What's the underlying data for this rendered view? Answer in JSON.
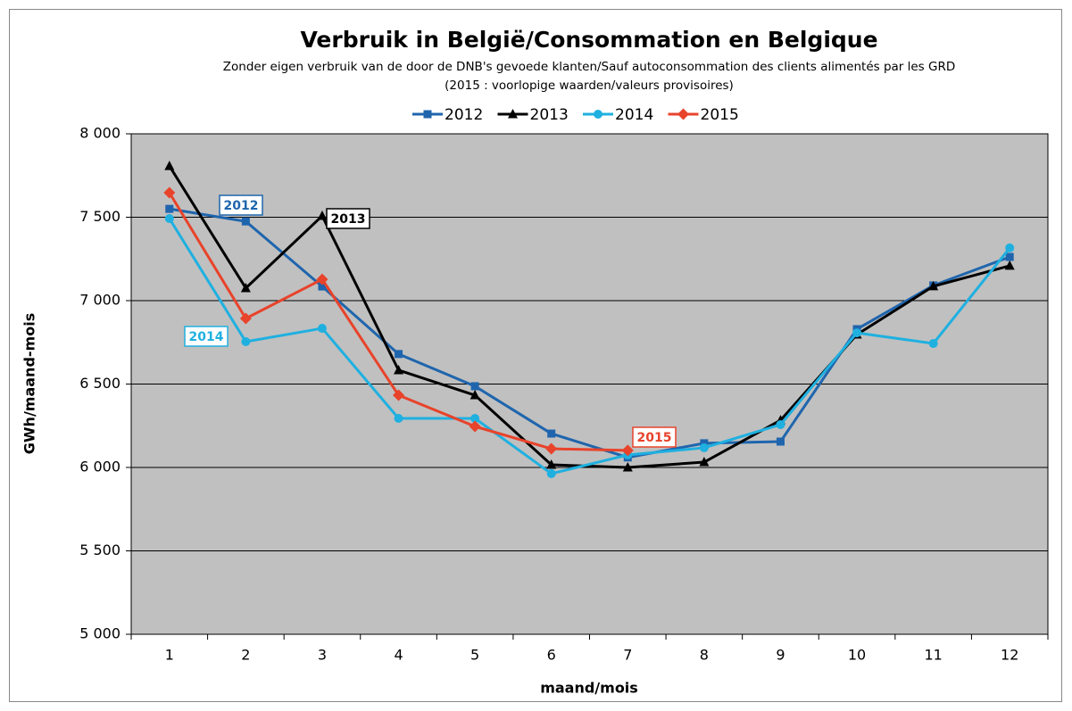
{
  "chart_data": {
    "type": "line",
    "title": "Verbruik in België/Consommation en Belgique",
    "subtitle": [
      "Zonder eigen verbruik van de door de DNB's gevoede  klanten/Sauf autoconsommation des clients alimentés par les GRD",
      "(2015 : voorlopige waarden/valeurs provisoires)"
    ],
    "x_label": "maand/mois",
    "y_label": "GWh/maand-mois",
    "categories": [
      "1",
      "2",
      "3",
      "4",
      "5",
      "6",
      "7",
      "8",
      "9",
      "10",
      "11",
      "12"
    ],
    "series": [
      {
        "name": "2012",
        "color": "#1f65ad",
        "marker": "square",
        "values": [
          7550,
          7475,
          7085,
          6680,
          6487,
          6203,
          6060,
          6145,
          6155,
          6829,
          7091,
          7262
        ]
      },
      {
        "name": "2013",
        "color": "#000000",
        "marker": "triangle",
        "values": [
          7807,
          7075,
          7508,
          6583,
          6433,
          6016,
          6000,
          6032,
          6283,
          6797,
          7086,
          7209
        ]
      },
      {
        "name": "2014",
        "color": "#1fb0e0",
        "marker": "circle",
        "values": [
          7492,
          6754,
          6834,
          6294,
          6294,
          5963,
          6075,
          6118,
          6257,
          6807,
          6743,
          7316
        ]
      },
      {
        "name": "2015",
        "color": "#e8432b",
        "marker": "diamond",
        "values": [
          7647,
          6893,
          7128,
          6433,
          6246,
          6112,
          6102,
          null,
          null,
          null,
          null,
          null
        ]
      }
    ],
    "annotations": [
      "2012",
      "2013",
      "2014",
      "2015"
    ],
    "ylim": [
      5000,
      8000
    ],
    "yticks": [
      {
        "value": 5000,
        "label": "5 000"
      },
      {
        "value": 5500,
        "label": "5 500"
      },
      {
        "value": 6000,
        "label": "6 000"
      },
      {
        "value": 6500,
        "label": "6 500"
      },
      {
        "value": 7000,
        "label": "7 000"
      },
      {
        "value": 7500,
        "label": "7 500"
      },
      {
        "value": 8000,
        "label": "8 000"
      }
    ],
    "grid": true,
    "legend": "top"
  }
}
